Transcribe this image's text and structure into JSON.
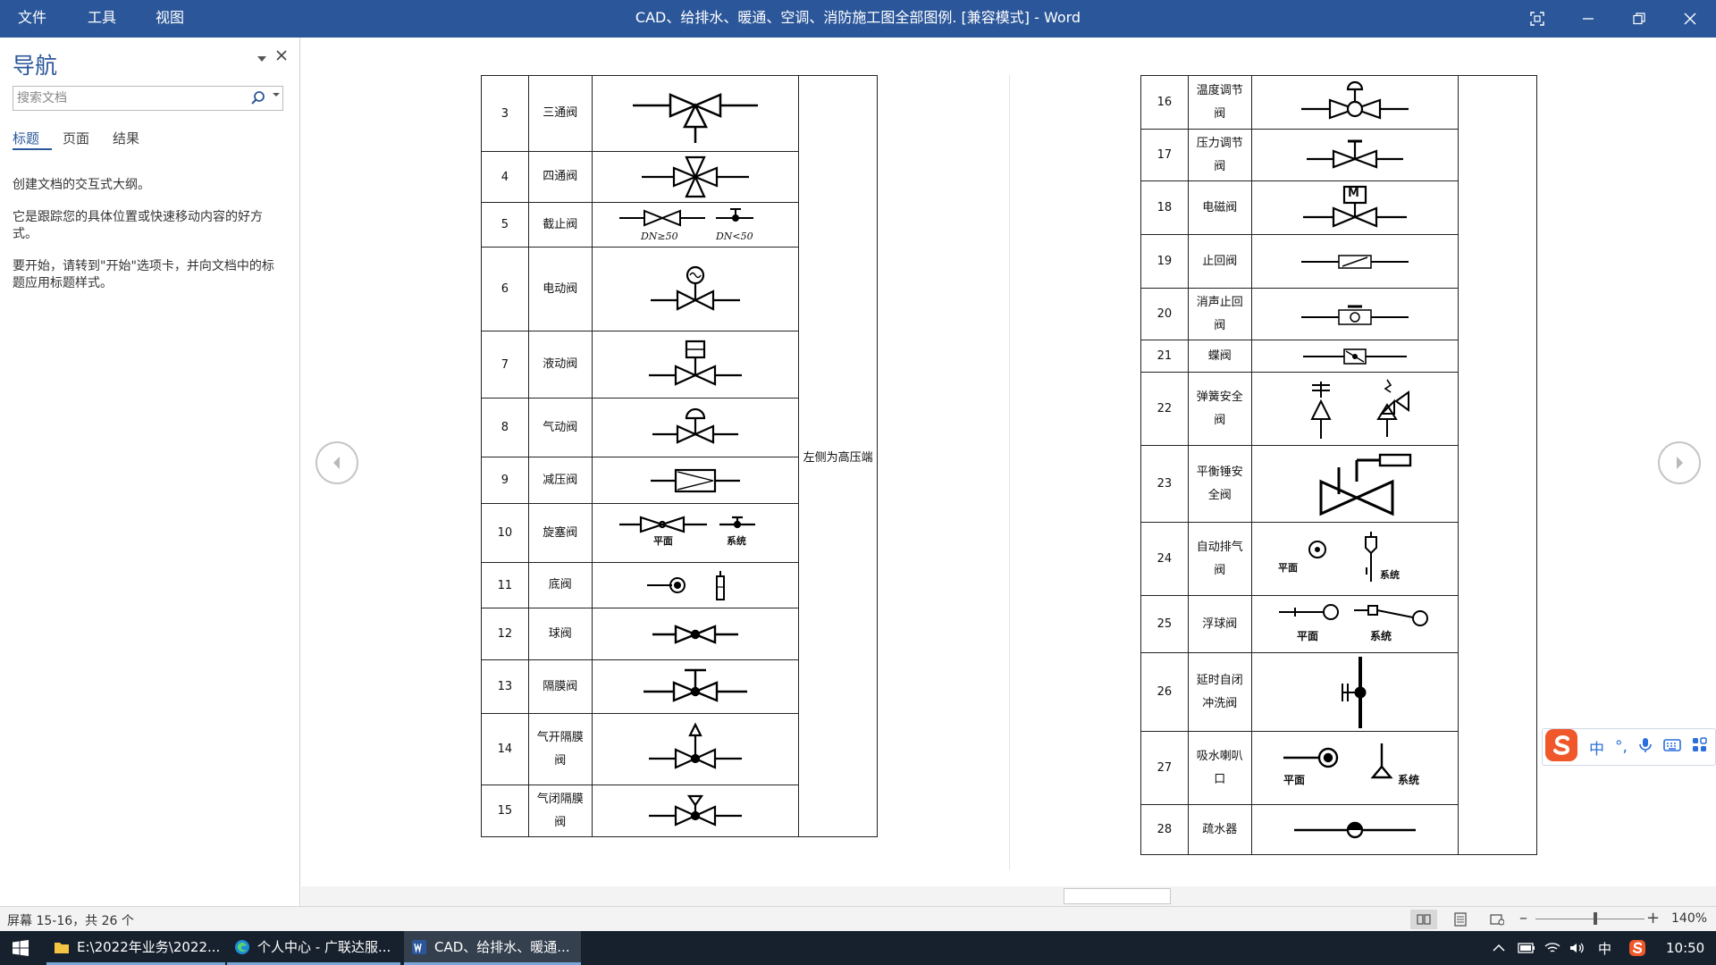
{
  "titlebar": {
    "menus": [
      "文件",
      "工具",
      "视图"
    ],
    "title": "CAD、给排水、暖通、空调、消防施工图全部图例. [兼容模式] - Word"
  },
  "nav": {
    "title": "导航",
    "search_placeholder": "搜索文档",
    "tabs": [
      "标题",
      "页面",
      "结果"
    ],
    "body": [
      "创建文档的交互式大纲。",
      "它是跟踪您的具体位置或快速移动内容的好方式。",
      "要开始，请转到\"开始\"选项卡，并向文档中的标题应用标题样式。"
    ]
  },
  "left_table": {
    "rows": [
      {
        "num": "3",
        "name": "三通阀",
        "symbol": "three-way-valve-icon"
      },
      {
        "num": "4",
        "name": "四通阀",
        "symbol": "four-way-valve-icon"
      },
      {
        "num": "5",
        "name": "截止阀",
        "symbol": "globe-valve-icon",
        "captions": [
          "DN≥50",
          "DN<50"
        ]
      },
      {
        "num": "6",
        "name": "电动阀",
        "symbol": "motor-valve-icon"
      },
      {
        "num": "7",
        "name": "液动阀",
        "symbol": "hydraulic-valve-icon"
      },
      {
        "num": "8",
        "name": "气动阀",
        "symbol": "pneumatic-valve-icon"
      },
      {
        "num": "9",
        "name": "减压阀",
        "symbol": "pressure-reducing-valve-icon"
      },
      {
        "num": "10",
        "name": "旋塞阀",
        "symbol": "plug-valve-icon",
        "captions": [
          "平面",
          "系统"
        ]
      },
      {
        "num": "11",
        "name": "底阀",
        "symbol": "foot-valve-icon"
      },
      {
        "num": "12",
        "name": "球阀",
        "symbol": "ball-valve-icon"
      },
      {
        "num": "13",
        "name": "隔膜阀",
        "symbol": "diaphragm-valve-icon"
      },
      {
        "num": "14",
        "name": "气开隔膜阀",
        "symbol": "air-open-diaphragm-valve-icon"
      },
      {
        "num": "15",
        "name": "气闭隔膜阀",
        "symbol": "air-close-diaphragm-valve-icon"
      }
    ],
    "note": "左侧为高压端"
  },
  "right_table": {
    "rows": [
      {
        "num": "16",
        "name": "温度调节阀",
        "symbol": "temperature-control-valve-icon"
      },
      {
        "num": "17",
        "name": "压力调节阀",
        "symbol": "pressure-control-valve-icon"
      },
      {
        "num": "18",
        "name": "电磁阀",
        "symbol": "solenoid-valve-icon",
        "captions": [
          "M"
        ]
      },
      {
        "num": "19",
        "name": "止回阀",
        "symbol": "check-valve-icon"
      },
      {
        "num": "20",
        "name": "消声止回阀",
        "symbol": "silent-check-valve-icon"
      },
      {
        "num": "21",
        "name": "蝶阀",
        "symbol": "butterfly-valve-icon"
      },
      {
        "num": "22",
        "name": "弹簧安全阀",
        "symbol": "spring-safety-valve-icon"
      },
      {
        "num": "23",
        "name": "平衡锤安全阀",
        "symbol": "weight-safety-valve-icon"
      },
      {
        "num": "24",
        "name": "自动排气阀",
        "symbol": "auto-air-vent-icon",
        "captions": [
          "平面",
          "系统"
        ]
      },
      {
        "num": "25",
        "name": "浮球阀",
        "symbol": "float-valve-icon",
        "captions": [
          "平面",
          "系统"
        ]
      },
      {
        "num": "26",
        "name": "延时自闭冲洗阀",
        "symbol": "delayed-flush-valve-icon"
      },
      {
        "num": "27",
        "name": "吸水喇叭口",
        "symbol": "suction-bellmouth-icon",
        "captions": [
          "平面",
          "系统"
        ]
      },
      {
        "num": "28",
        "name": "疏水器",
        "symbol": "steam-trap-icon"
      }
    ]
  },
  "status": {
    "page_info": "屏幕 15-16，共 26 个",
    "zoom": "140%",
    "zoom_level_percent": 140
  },
  "ime": {
    "items": [
      "中",
      "°,",
      "mic-icon",
      "keyboard-icon",
      "grid-icon"
    ]
  },
  "taskbar": {
    "items": [
      "E:\\2022年业务\\2022...",
      "个人中心 - 广联达服...",
      "CAD、给排水、暖通..."
    ],
    "tray_lang": "中",
    "time": "10:50"
  }
}
